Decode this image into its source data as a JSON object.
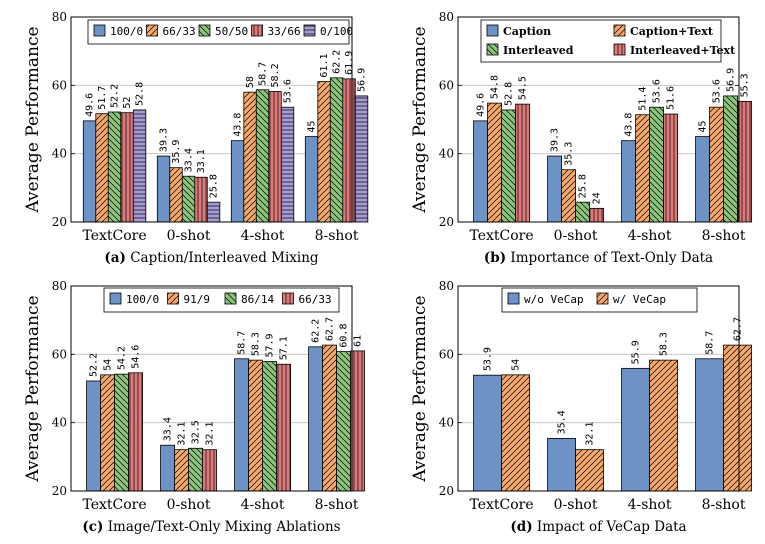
{
  "chart_data": [
    {
      "type": "bar",
      "caption_tag": "(a)",
      "caption": "Caption/Interleaved Mixing",
      "ylabel": "Average Performance",
      "ylim": [
        20,
        80
      ],
      "yticks": [
        20,
        40,
        60,
        80
      ],
      "grid": true,
      "legend_position": "top",
      "categories": [
        "TextCore",
        "0-shot",
        "4-shot",
        "8-shot"
      ],
      "series": [
        {
          "name": "100/0",
          "values": [
            49.6,
            39.3,
            43.8,
            45
          ]
        },
        {
          "name": "66/33",
          "values": [
            51.7,
            35.9,
            58,
            61.1
          ]
        },
        {
          "name": "50/50",
          "values": [
            52.2,
            33.4,
            58.7,
            62.2
          ]
        },
        {
          "name": "33/66",
          "values": [
            52,
            33.1,
            58.2,
            61.9
          ]
        },
        {
          "name": "0/100",
          "values": [
            52.8,
            25.8,
            53.6,
            56.9
          ]
        }
      ]
    },
    {
      "type": "bar",
      "caption_tag": "(b)",
      "caption": "Importance of Text-Only Data",
      "ylabel": "Average Performance",
      "ylim": [
        20,
        80
      ],
      "yticks": [
        20,
        40,
        60,
        80
      ],
      "grid": true,
      "legend_position": "top",
      "categories": [
        "TextCore",
        "0-shot",
        "4-shot",
        "8-shot"
      ],
      "series": [
        {
          "name": "Caption",
          "values": [
            49.6,
            39.3,
            43.8,
            45
          ]
        },
        {
          "name": "Caption+Text",
          "values": [
            54.8,
            35.3,
            51.4,
            53.6
          ]
        },
        {
          "name": "Interleaved",
          "values": [
            52.8,
            25.8,
            53.6,
            56.9
          ]
        },
        {
          "name": "Interleaved+Text",
          "values": [
            54.5,
            24,
            51.6,
            55.3
          ]
        }
      ]
    },
    {
      "type": "bar",
      "caption_tag": "(c)",
      "caption": "Image/Text-Only Mixing Ablations",
      "ylabel": "Average Performance",
      "ylim": [
        20,
        80
      ],
      "yticks": [
        20,
        40,
        60,
        80
      ],
      "grid": true,
      "legend_position": "top",
      "categories": [
        "TextCore",
        "0-shot",
        "4-shot",
        "8-shot"
      ],
      "series": [
        {
          "name": "100/0",
          "values": [
            52.2,
            33.4,
            58.7,
            62.2
          ]
        },
        {
          "name": "91/9",
          "values": [
            54,
            32.1,
            58.3,
            62.7
          ]
        },
        {
          "name": "86/14",
          "values": [
            54.2,
            32.5,
            57.9,
            60.8
          ]
        },
        {
          "name": "66/33",
          "values": [
            54.6,
            32.1,
            57.1,
            61
          ]
        }
      ]
    },
    {
      "type": "bar",
      "caption_tag": "(d)",
      "caption": "Impact of VeCap Data",
      "ylabel": "Average Performance",
      "ylim": [
        20,
        80
      ],
      "yticks": [
        20,
        40,
        60,
        80
      ],
      "grid": true,
      "legend_position": "top",
      "categories": [
        "TextCore",
        "0-shot",
        "4-shot",
        "8-shot"
      ],
      "series": [
        {
          "name": "w/o VeCap",
          "values": [
            53.9,
            35.4,
            55.9,
            58.7
          ]
        },
        {
          "name": "w/ VeCap",
          "values": [
            54,
            32.1,
            58.3,
            62.7
          ]
        }
      ]
    }
  ],
  "colors": {
    "blue": "#6d93c6",
    "orange": "#f6a86b",
    "green": "#8cc47c",
    "red": "#e07a7a",
    "purple": "#a59cd6",
    "grid": "#bfbfbf"
  }
}
